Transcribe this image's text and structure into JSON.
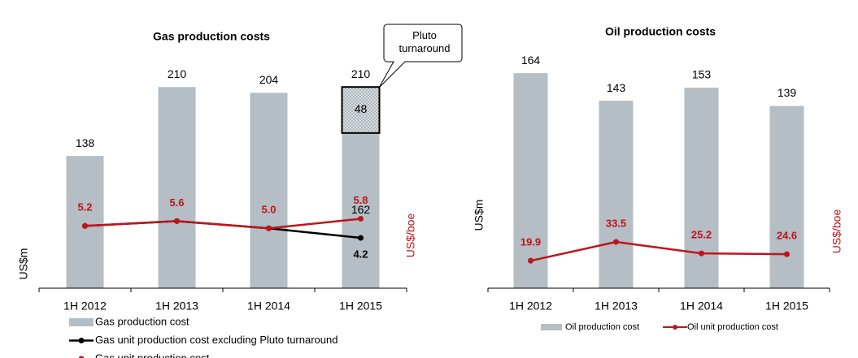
{
  "chart_data": [
    {
      "type": "bar",
      "title": "Gas production costs",
      "ylabel": "US$m",
      "y2label": "US$/boe",
      "categories": [
        "1H 2012",
        "1H 2013",
        "1H 2014",
        "1H 2015"
      ],
      "ylim": [
        0,
        250
      ],
      "y2lim": [
        0,
        20
      ],
      "legend": "bottom-vertical",
      "totals": [
        138,
        210,
        204,
        210
      ],
      "annotation": "Pluto turnaround",
      "series": [
        {
          "name": "Gas production cost",
          "type": "bar",
          "color": "#b4bec4",
          "values": [
            138,
            210,
            204,
            162
          ]
        },
        {
          "type": "bar",
          "color": "#c8d0d4",
          "pattern": "hatched",
          "values": [
            null,
            null,
            null,
            48
          ]
        },
        {
          "name": "Gas unit production cost excluding Pluto turnaround",
          "type": "line",
          "axis": "y2",
          "color": "#000000",
          "values": [
            5.2,
            5.6,
            5.0,
            4.2
          ],
          "value_labels": [
            null,
            null,
            null,
            "4.2"
          ]
        },
        {
          "name": "Gas unit production cost",
          "type": "line",
          "axis": "y2",
          "color": "#c0141c",
          "values": [
            5.2,
            5.6,
            5.0,
            5.8
          ],
          "value_labels": [
            "5.2",
            "5.6",
            "5.0",
            "5.8"
          ]
        }
      ]
    },
    {
      "type": "bar",
      "title": "Oil production costs",
      "ylabel": "US$m",
      "y2label": "US$/boe",
      "categories": [
        "1H 2012",
        "1H 2013",
        "1H 2014",
        "1H 2015"
      ],
      "ylim": [
        0,
        200
      ],
      "y2lim": [
        0,
        190
      ],
      "legend": "bottom-horizontal",
      "series": [
        {
          "name": "Oil production cost",
          "type": "bar",
          "color": "#b4bec4",
          "values": [
            164,
            143,
            153,
            139
          ],
          "value_labels": [
            "164",
            "143",
            "153",
            "139"
          ]
        },
        {
          "name": "Oil unit production cost",
          "type": "line",
          "axis": "y2",
          "color": "#c0141c",
          "values": [
            19.9,
            33.5,
            25.2,
            24.6
          ],
          "value_labels": [
            "19.9",
            "33.5",
            "25.2",
            "24.6"
          ]
        }
      ]
    }
  ]
}
